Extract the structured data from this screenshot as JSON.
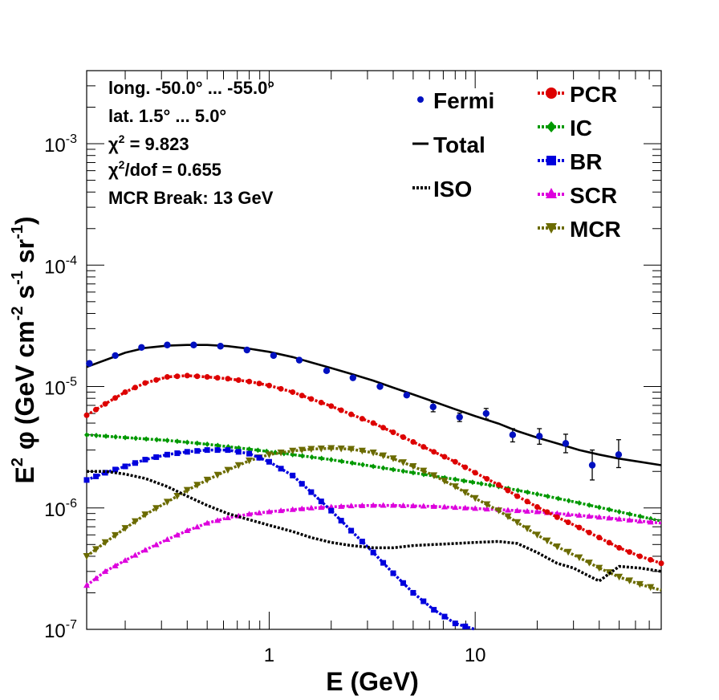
{
  "chart_data": {
    "type": "line",
    "xlabel": "E (GeV)",
    "ylabel": {
      "base": "E",
      "exp": "2",
      "phi": "φ",
      "units_prefix": "(GeV cm",
      "units_exp1": "-2",
      "units_mid": " s",
      "units_exp2": "-1",
      "units_mid2": " sr",
      "units_exp3": "-1",
      "units_suffix": ")"
    },
    "x_scale": "log",
    "y_scale": "log",
    "xlim": [
      0.13,
      80
    ],
    "ylim": [
      1e-07,
      0.004
    ],
    "x_ticks": [
      {
        "value": 1,
        "label": "1"
      },
      {
        "value": 10,
        "label": "10"
      }
    ],
    "y_ticks": [
      {
        "value": 1e-07,
        "base": "10",
        "exp": "-7"
      },
      {
        "value": 1e-06,
        "base": "10",
        "exp": "-6"
      },
      {
        "value": 1e-05,
        "base": "10",
        "exp": "-5"
      },
      {
        "value": 0.0001,
        "base": "10",
        "exp": "-4"
      },
      {
        "value": 0.001,
        "base": "10",
        "exp": "-3"
      }
    ],
    "info_lines": [
      "long. -50.0° ... -55.0°",
      "lat. 1.5° ... 5.0°",
      {
        "prefix": "χ",
        "sup": "2",
        "suffix": " = 9.823"
      },
      {
        "prefix": "χ",
        "sup": "2",
        "suffix": "/dof = 0.655"
      },
      "MCR Break: 13 GeV"
    ],
    "legend_left": [
      {
        "name": "Fermi",
        "marker": "dot"
      },
      {
        "name": "Total",
        "marker": "solid-line"
      },
      {
        "name": "ISO",
        "marker": "dotted-line"
      }
    ],
    "legend_right": [
      {
        "name": "PCR",
        "marker": "circle",
        "color": "#dd0000"
      },
      {
        "name": "IC",
        "marker": "diamond",
        "color": "#009900"
      },
      {
        "name": "BR",
        "marker": "square",
        "color": "#0000dd"
      },
      {
        "name": "SCR",
        "marker": "triangle-up",
        "color": "#dd00dd"
      },
      {
        "name": "MCR",
        "marker": "triangle-down",
        "color": "#6b6b00"
      }
    ],
    "fermi": {
      "color": "#0010c0",
      "points": [
        [
          0.134,
          1.55e-05
        ],
        [
          0.179,
          1.8e-05
        ],
        [
          0.24,
          2.1e-05
        ],
        [
          0.32,
          2.2e-05
        ],
        [
          0.43,
          2.2e-05
        ],
        [
          0.58,
          2.15e-05
        ],
        [
          0.78,
          2e-05
        ],
        [
          1.05,
          1.8e-05
        ],
        [
          1.4,
          1.65e-05
        ],
        [
          1.9,
          1.35e-05
        ],
        [
          2.55,
          1.18e-05
        ],
        [
          3.45,
          1e-05
        ],
        [
          4.65,
          8.5e-06
        ],
        [
          6.25,
          6.8e-06
        ],
        [
          8.4,
          5.6e-06
        ],
        [
          11.3,
          6e-06
        ],
        [
          15.2,
          4e-06
        ],
        [
          20.5,
          3.9e-06
        ],
        [
          27.5,
          3.4e-06
        ],
        [
          37.0,
          2.25e-06
        ],
        [
          49.7,
          2.75e-06
        ]
      ],
      "errors": [
        [
          0,
          0
        ],
        [
          0,
          0
        ],
        [
          0,
          0
        ],
        [
          0,
          0
        ],
        [
          0,
          0
        ],
        [
          0,
          0
        ],
        [
          0,
          0
        ],
        [
          0,
          0
        ],
        [
          0,
          0
        ],
        [
          0,
          0
        ],
        [
          0,
          0
        ],
        [
          0,
          0
        ],
        [
          0,
          0
        ],
        [
          6e-07,
          6e-07
        ],
        [
          4.5e-07,
          4.5e-07
        ],
        [
          6e-07,
          6e-07
        ],
        [
          5e-07,
          5e-07
        ],
        [
          5.5e-07,
          6e-07
        ],
        [
          5.5e-07,
          6.5e-07
        ],
        [
          5.5e-07,
          7.5e-07
        ],
        [
          6e-07,
          9e-07
        ]
      ]
    },
    "series": [
      {
        "name": "Total",
        "color": "#000000",
        "style": "solid",
        "marker": "none",
        "points": [
          [
            0.13,
            1.45e-05
          ],
          [
            0.16,
            1.65e-05
          ],
          [
            0.2,
            1.9e-05
          ],
          [
            0.25,
            2.08e-05
          ],
          [
            0.32,
            2.17e-05
          ],
          [
            0.4,
            2.2e-05
          ],
          [
            0.5,
            2.2e-05
          ],
          [
            0.63,
            2.15e-05
          ],
          [
            0.8,
            2.05e-05
          ],
          [
            1.0,
            1.93e-05
          ],
          [
            1.3,
            1.75e-05
          ],
          [
            1.6,
            1.58e-05
          ],
          [
            2.0,
            1.42e-05
          ],
          [
            2.5,
            1.27e-05
          ],
          [
            3.2,
            1.12e-05
          ],
          [
            4.0,
            9.8e-06
          ],
          [
            5.0,
            8.6e-06
          ],
          [
            6.3,
            7.5e-06
          ],
          [
            8.0,
            6.5e-06
          ],
          [
            10,
            5.7e-06
          ],
          [
            13,
            4.95e-06
          ],
          [
            16,
            4.3e-06
          ],
          [
            20,
            3.8e-06
          ],
          [
            25,
            3.4e-06
          ],
          [
            32,
            3e-06
          ],
          [
            40,
            2.75e-06
          ],
          [
            50,
            2.55e-06
          ],
          [
            63,
            2.4e-06
          ],
          [
            80,
            2.25e-06
          ]
        ]
      },
      {
        "name": "PCR",
        "color": "#dd0000",
        "style": "marker",
        "marker": "circle",
        "points": [
          [
            0.13,
            5.8e-06
          ],
          [
            0.16,
            7.2e-06
          ],
          [
            0.2,
            9e-06
          ],
          [
            0.25,
            1.07e-05
          ],
          [
            0.32,
            1.2e-05
          ],
          [
            0.4,
            1.23e-05
          ],
          [
            0.5,
            1.2e-05
          ],
          [
            0.63,
            1.16e-05
          ],
          [
            0.8,
            1.1e-05
          ],
          [
            1.0,
            1.02e-05
          ],
          [
            1.3,
            9e-06
          ],
          [
            1.6,
            7.9e-06
          ],
          [
            2.0,
            6.9e-06
          ],
          [
            2.5,
            5.9e-06
          ],
          [
            3.2,
            5e-06
          ],
          [
            4.0,
            4.2e-06
          ],
          [
            5.0,
            3.5e-06
          ],
          [
            6.3,
            2.9e-06
          ],
          [
            8.0,
            2.4e-06
          ],
          [
            10,
            1.95e-06
          ],
          [
            13,
            1.55e-06
          ],
          [
            16,
            1.25e-06
          ],
          [
            20,
            1.02e-06
          ],
          [
            25,
            8.4e-07
          ],
          [
            32,
            6.9e-07
          ],
          [
            40,
            5.7e-07
          ],
          [
            50,
            4.7e-07
          ],
          [
            63,
            4e-07
          ],
          [
            80,
            3.5e-07
          ]
        ]
      },
      {
        "name": "IC",
        "color": "#009900",
        "style": "marker",
        "marker": "diamond",
        "points": [
          [
            0.13,
            4e-06
          ],
          [
            0.2,
            3.8e-06
          ],
          [
            0.32,
            3.6e-06
          ],
          [
            0.5,
            3.35e-06
          ],
          [
            0.8,
            3.05e-06
          ],
          [
            1.3,
            2.75e-06
          ],
          [
            2.0,
            2.5e-06
          ],
          [
            3.2,
            2.2e-06
          ],
          [
            5.0,
            1.95e-06
          ],
          [
            8.0,
            1.72e-06
          ],
          [
            13,
            1.5e-06
          ],
          [
            20,
            1.3e-06
          ],
          [
            32,
            1.1e-06
          ],
          [
            50,
            9.3e-07
          ],
          [
            80,
            7.8e-07
          ]
        ]
      },
      {
        "name": "BR",
        "color": "#0000dd",
        "style": "marker",
        "marker": "square",
        "points": [
          [
            0.13,
            1.7e-06
          ],
          [
            0.16,
            1.95e-06
          ],
          [
            0.2,
            2.2e-06
          ],
          [
            0.25,
            2.5e-06
          ],
          [
            0.32,
            2.75e-06
          ],
          [
            0.4,
            2.9e-06
          ],
          [
            0.5,
            3e-06
          ],
          [
            0.63,
            3e-06
          ],
          [
            0.8,
            2.8e-06
          ],
          [
            1.0,
            2.4e-06
          ],
          [
            1.3,
            1.85e-06
          ],
          [
            1.6,
            1.35e-06
          ],
          [
            2.0,
            9.5e-07
          ],
          [
            2.5,
            6.5e-07
          ],
          [
            3.2,
            4.3e-07
          ],
          [
            4.0,
            2.9e-07
          ],
          [
            5.0,
            2e-07
          ],
          [
            6.3,
            1.45e-07
          ],
          [
            8.0,
            1.12e-07
          ],
          [
            10,
            1e-07
          ]
        ]
      },
      {
        "name": "SCR",
        "color": "#dd00dd",
        "style": "marker",
        "marker": "triangle-up",
        "points": [
          [
            0.13,
            2.3e-07
          ],
          [
            0.16,
            3e-07
          ],
          [
            0.2,
            3.7e-07
          ],
          [
            0.25,
            4.5e-07
          ],
          [
            0.32,
            5.5e-07
          ],
          [
            0.4,
            6.5e-07
          ],
          [
            0.5,
            7.5e-07
          ],
          [
            0.63,
            8.3e-07
          ],
          [
            0.8,
            8.9e-07
          ],
          [
            1.0,
            9.3e-07
          ],
          [
            1.3,
            9.7e-07
          ],
          [
            1.6,
            1e-06
          ],
          [
            2.0,
            1.02e-06
          ],
          [
            2.5,
            1.04e-06
          ],
          [
            3.2,
            1.05e-06
          ],
          [
            4.0,
            1.05e-06
          ],
          [
            5.0,
            1.04e-06
          ],
          [
            6.3,
            1.03e-06
          ],
          [
            8.0,
            1.01e-06
          ],
          [
            10,
            9.9e-07
          ],
          [
            13,
            9.7e-07
          ],
          [
            16,
            9.5e-07
          ],
          [
            20,
            9.3e-07
          ],
          [
            25,
            9e-07
          ],
          [
            32,
            8.7e-07
          ],
          [
            40,
            8.4e-07
          ],
          [
            50,
            8.1e-07
          ],
          [
            63,
            7.8e-07
          ],
          [
            80,
            7.5e-07
          ]
        ]
      },
      {
        "name": "MCR",
        "color": "#6b6b00",
        "style": "marker",
        "marker": "triangle-down",
        "points": [
          [
            0.13,
            4e-07
          ],
          [
            0.16,
            5.2e-07
          ],
          [
            0.2,
            6.8e-07
          ],
          [
            0.25,
            8.8e-07
          ],
          [
            0.32,
            1.12e-06
          ],
          [
            0.4,
            1.4e-06
          ],
          [
            0.5,
            1.7e-06
          ],
          [
            0.63,
            2.05e-06
          ],
          [
            0.8,
            2.45e-06
          ],
          [
            1.0,
            2.75e-06
          ],
          [
            1.3,
            2.95e-06
          ],
          [
            1.6,
            3.05e-06
          ],
          [
            2.0,
            3.1e-06
          ],
          [
            2.5,
            3.05e-06
          ],
          [
            3.2,
            2.85e-06
          ],
          [
            4.0,
            2.55e-06
          ],
          [
            5.0,
            2.2e-06
          ],
          [
            6.3,
            1.85e-06
          ],
          [
            8.0,
            1.5e-06
          ],
          [
            10,
            1.2e-06
          ],
          [
            13,
            9.5e-07
          ],
          [
            16,
            7.6e-07
          ],
          [
            20,
            6e-07
          ],
          [
            25,
            4.8e-07
          ],
          [
            32,
            3.9e-07
          ],
          [
            40,
            3.2e-07
          ],
          [
            50,
            2.7e-07
          ],
          [
            63,
            2.35e-07
          ],
          [
            80,
            2.1e-07
          ]
        ]
      },
      {
        "name": "ISO",
        "color": "#000000",
        "style": "dotted",
        "marker": "none",
        "points": [
          [
            0.13,
            2e-06
          ],
          [
            0.16,
            2e-06
          ],
          [
            0.2,
            1.9e-06
          ],
          [
            0.25,
            1.75e-06
          ],
          [
            0.32,
            1.5e-06
          ],
          [
            0.4,
            1.25e-06
          ],
          [
            0.5,
            1.05e-06
          ],
          [
            0.63,
            9e-07
          ],
          [
            0.8,
            8e-07
          ],
          [
            1.0,
            7.2e-07
          ],
          [
            1.3,
            6.4e-07
          ],
          [
            1.6,
            5.7e-07
          ],
          [
            2.0,
            5.2e-07
          ],
          [
            2.5,
            4.9e-07
          ],
          [
            3.2,
            4.7e-07
          ],
          [
            4.0,
            4.7e-07
          ],
          [
            5.0,
            4.9e-07
          ],
          [
            6.3,
            5e-07
          ],
          [
            8.0,
            5.1e-07
          ],
          [
            10,
            5.2e-07
          ],
          [
            13,
            5.3e-07
          ],
          [
            16,
            5.1e-07
          ],
          [
            20,
            4.3e-07
          ],
          [
            25,
            3.5e-07
          ],
          [
            30,
            3.2e-07
          ],
          [
            35,
            2.8e-07
          ],
          [
            40,
            2.5e-07
          ],
          [
            45,
            2.9e-07
          ],
          [
            50,
            3.3e-07
          ],
          [
            63,
            3.2e-07
          ],
          [
            80,
            3e-07
          ]
        ]
      }
    ]
  }
}
